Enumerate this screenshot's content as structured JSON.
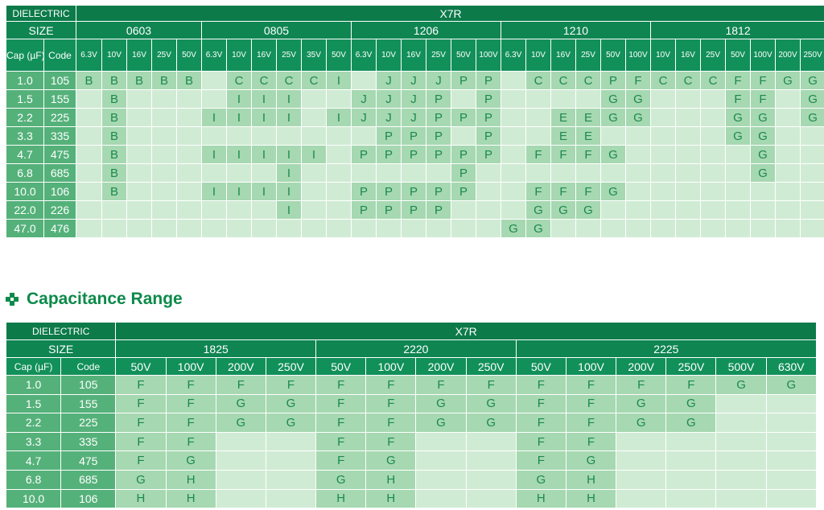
{
  "colors": {
    "header_dark": "#0c7a49",
    "header_mid": "#12905a",
    "row_label": "#55b17a",
    "cell_empty": "#d0ebd4",
    "cell_filled": "#a6d8b1",
    "cell_text": "#1a8a4c",
    "title_green": "#0c8a4a"
  },
  "table1": {
    "dielectric_label": "DIELECTRIC",
    "dielectric_value": "X7R",
    "size_label": "SIZE",
    "cap_label": "Cap (µF)",
    "code_label": "Code",
    "groups": [
      {
        "name": "0603",
        "voltages": [
          "6.3V",
          "10V",
          "16V",
          "25V",
          "50V"
        ]
      },
      {
        "name": "0805",
        "voltages": [
          "6.3V",
          "10V",
          "16V",
          "25V",
          "35V",
          "50V"
        ]
      },
      {
        "name": "1206",
        "voltages": [
          "6.3V",
          "10V",
          "16V",
          "25V",
          "50V",
          "100V"
        ]
      },
      {
        "name": "1210",
        "voltages": [
          "6.3V",
          "10V",
          "16V",
          "25V",
          "50V",
          "100V"
        ]
      },
      {
        "name": "1812",
        "voltages": [
          "10V",
          "16V",
          "25V",
          "50V",
          "100V",
          "200V",
          "250V"
        ]
      }
    ],
    "rows": [
      {
        "cap": "1.0",
        "code": "105",
        "cells": [
          "B",
          "B",
          "B",
          "B",
          "B",
          "",
          "C",
          "C",
          "C",
          "C",
          "I",
          "",
          "J",
          "J",
          "J",
          "P",
          "P",
          "",
          "C",
          "C",
          "C",
          "P",
          "F",
          "C",
          "C",
          "C",
          "F",
          "F",
          "G",
          "G"
        ]
      },
      {
        "cap": "1.5",
        "code": "155",
        "cells": [
          "",
          "B",
          "",
          "",
          "",
          "",
          "I",
          "I",
          "I",
          "",
          "",
          "J",
          "J",
          "J",
          "P",
          "",
          "P",
          "",
          "",
          "",
          "",
          "G",
          "G",
          "",
          "",
          "",
          "F",
          "F",
          "",
          "G"
        ]
      },
      {
        "cap": "2.2",
        "code": "225",
        "cells": [
          "",
          "B",
          "",
          "",
          "",
          "I",
          "I",
          "I",
          "I",
          "",
          "I",
          "J",
          "J",
          "J",
          "P",
          "P",
          "P",
          "",
          "",
          "E",
          "E",
          "G",
          "G",
          "",
          "",
          "",
          "G",
          "G",
          "",
          "G"
        ]
      },
      {
        "cap": "3.3",
        "code": "335",
        "cells": [
          "",
          "B",
          "",
          "",
          "",
          "",
          "",
          "",
          "",
          "",
          "",
          "",
          "P",
          "P",
          "P",
          "",
          "P",
          "",
          "",
          "E",
          "E",
          "",
          "",
          "",
          "",
          "",
          "G",
          "G",
          "",
          ""
        ]
      },
      {
        "cap": "4.7",
        "code": "475",
        "cells": [
          "",
          "B",
          "",
          "",
          "",
          "I",
          "I",
          "I",
          "I",
          "I",
          "",
          "P",
          "P",
          "P",
          "P",
          "P",
          "P",
          "",
          "F",
          "F",
          "F",
          "G",
          "",
          "",
          "",
          "",
          "",
          "G",
          "",
          ""
        ]
      },
      {
        "cap": "6.8",
        "code": "685",
        "cells": [
          "",
          "B",
          "",
          "",
          "",
          "",
          "",
          "",
          "I",
          "",
          "",
          "",
          "",
          "",
          "",
          "P",
          "",
          "",
          "",
          "",
          "",
          "",
          "",
          "",
          "",
          "",
          "",
          "G",
          "",
          ""
        ]
      },
      {
        "cap": "10.0",
        "code": "106",
        "cells": [
          "",
          "B",
          "",
          "",
          "",
          "I",
          "I",
          "I",
          "I",
          "",
          "",
          "P",
          "P",
          "P",
          "P",
          "P",
          "",
          "",
          "F",
          "F",
          "F",
          "G",
          "",
          "",
          "",
          "",
          "",
          "",
          "",
          ""
        ]
      },
      {
        "cap": "22.0",
        "code": "226",
        "cells": [
          "",
          "",
          "",
          "",
          "",
          "",
          "",
          "",
          "I",
          "",
          "",
          "P",
          "P",
          "P",
          "P",
          "",
          "",
          "",
          "G",
          "G",
          "G",
          "",
          "",
          "",
          "",
          "",
          "",
          "",
          "",
          ""
        ]
      },
      {
        "cap": "47.0",
        "code": "476",
        "cells": [
          "",
          "",
          "",
          "",
          "",
          "",
          "",
          "",
          "",
          "",
          "",
          "",
          "",
          "",
          "",
          "",
          "",
          "G",
          "G",
          "",
          "",
          "",
          "",
          "",
          "",
          "",
          "",
          "",
          "",
          ""
        ]
      }
    ]
  },
  "section_title": "Capacitance Range",
  "table2": {
    "dielectric_label": "DIELECTRIC",
    "dielectric_value": "X7R",
    "size_label": "SIZE",
    "cap_label": "Cap (µF)",
    "code_label": "Code",
    "groups": [
      {
        "name": "1825",
        "voltages": [
          "50V",
          "100V",
          "200V",
          "250V"
        ]
      },
      {
        "name": "2220",
        "voltages": [
          "50V",
          "100V",
          "200V",
          "250V"
        ]
      },
      {
        "name": "2225",
        "voltages": [
          "50V",
          "100V",
          "200V",
          "250V",
          "500V",
          "630V"
        ]
      }
    ],
    "rows": [
      {
        "cap": "1.0",
        "code": "105",
        "cells": [
          "F",
          "F",
          "F",
          "F",
          "F",
          "F",
          "F",
          "F",
          "F",
          "F",
          "F",
          "F",
          "G",
          "G"
        ]
      },
      {
        "cap": "1.5",
        "code": "155",
        "cells": [
          "F",
          "F",
          "G",
          "G",
          "F",
          "F",
          "G",
          "G",
          "F",
          "F",
          "G",
          "G",
          "",
          ""
        ]
      },
      {
        "cap": "2.2",
        "code": "225",
        "cells": [
          "F",
          "F",
          "G",
          "G",
          "F",
          "F",
          "G",
          "G",
          "F",
          "F",
          "G",
          "G",
          "",
          ""
        ]
      },
      {
        "cap": "3.3",
        "code": "335",
        "cells": [
          "F",
          "F",
          "",
          "",
          "F",
          "F",
          "",
          "",
          "F",
          "F",
          "",
          "",
          "",
          ""
        ]
      },
      {
        "cap": "4.7",
        "code": "475",
        "cells": [
          "F",
          "G",
          "",
          "",
          "F",
          "G",
          "",
          "",
          "F",
          "G",
          "",
          "",
          "",
          ""
        ]
      },
      {
        "cap": "6.8",
        "code": "685",
        "cells": [
          "G",
          "H",
          "",
          "",
          "G",
          "H",
          "",
          "",
          "G",
          "H",
          "",
          "",
          "",
          ""
        ]
      },
      {
        "cap": "10.0",
        "code": "106",
        "cells": [
          "H",
          "H",
          "",
          "",
          "H",
          "H",
          "",
          "",
          "H",
          "H",
          "",
          "",
          "",
          ""
        ]
      }
    ]
  }
}
